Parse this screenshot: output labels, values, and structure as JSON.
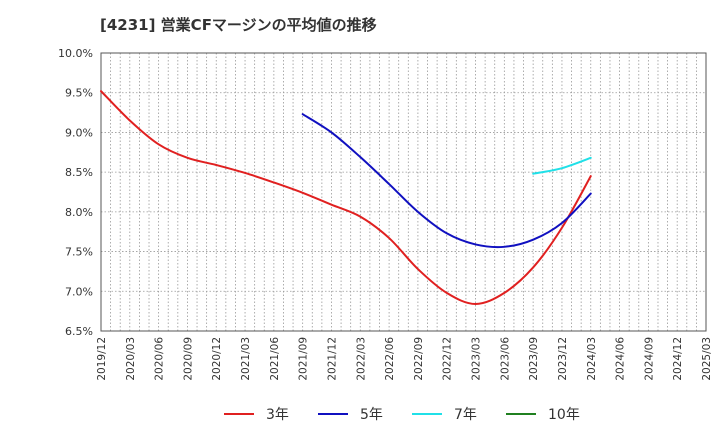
{
  "chart_data": {
    "type": "line",
    "title": "[4231]  営業CFマージンの平均値の推移",
    "xlabel": "",
    "ylabel": "",
    "ylim": [
      6.5,
      10.0
    ],
    "y_ticks": [
      10.0,
      9.5,
      9.0,
      8.5,
      8.0,
      7.5,
      7.0,
      6.5
    ],
    "y_tick_labels": [
      "10.0%",
      "9.5%",
      "9.0%",
      "8.5%",
      "8.0%",
      "7.5%",
      "7.0%",
      "6.5%"
    ],
    "x_range": [
      "2019/12",
      "2025/03"
    ],
    "x_ticks": [
      "2019/12",
      "2020/03",
      "2020/06",
      "2020/09",
      "2020/12",
      "2021/03",
      "2021/06",
      "2021/09",
      "2021/12",
      "2022/03",
      "2022/06",
      "2022/09",
      "2022/12",
      "2023/03",
      "2023/06",
      "2023/09",
      "2023/12",
      "2024/03",
      "2024/06",
      "2024/09",
      "2024/12",
      "2025/03"
    ],
    "grid": true,
    "legend_position": "bottom",
    "series": [
      {
        "name": "3年",
        "color": "#e02020",
        "x": [
          "2019/12",
          "2020/03",
          "2020/06",
          "2020/09",
          "2020/12",
          "2021/03",
          "2021/06",
          "2021/09",
          "2021/12",
          "2022/03",
          "2022/06",
          "2022/09",
          "2022/12",
          "2023/03",
          "2023/06",
          "2023/09",
          "2023/12",
          "2024/03"
        ],
        "values": [
          9.52,
          9.15,
          8.85,
          8.68,
          8.59,
          8.49,
          8.37,
          8.24,
          8.09,
          7.94,
          7.67,
          7.28,
          6.98,
          6.84,
          6.98,
          7.3,
          7.8,
          8.45
        ]
      },
      {
        "name": "5年",
        "color": "#1010c0",
        "x": [
          "2021/09",
          "2021/12",
          "2022/03",
          "2022/06",
          "2022/09",
          "2022/12",
          "2023/03",
          "2023/06",
          "2023/09",
          "2023/12",
          "2024/03"
        ],
        "values": [
          9.23,
          9.0,
          8.69,
          8.35,
          8.0,
          7.73,
          7.59,
          7.56,
          7.65,
          7.86,
          8.23
        ]
      },
      {
        "name": "7年",
        "color": "#20e0e8",
        "x": [
          "2023/09",
          "2023/12",
          "2024/03"
        ],
        "values": [
          8.48,
          8.55,
          8.68
        ]
      },
      {
        "name": "10年",
        "color": "#208020",
        "x": [],
        "values": []
      }
    ]
  }
}
